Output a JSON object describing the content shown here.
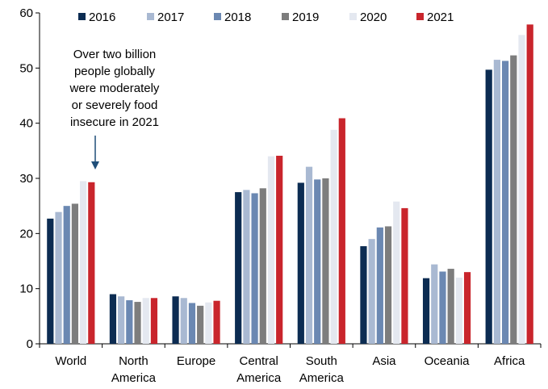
{
  "chart_data": {
    "type": "bar",
    "categories": [
      [
        "World"
      ],
      [
        "North",
        "America"
      ],
      [
        "Europe"
      ],
      [
        "Central",
        "America"
      ],
      [
        "South",
        "America"
      ],
      [
        "Asia"
      ],
      [
        "Oceania"
      ],
      [
        "Africa"
      ]
    ],
    "series": [
      {
        "name": "2016",
        "color": "#0c2c52",
        "values": [
          22.7,
          9.0,
          8.6,
          27.5,
          29.2,
          17.7,
          11.9,
          49.7
        ]
      },
      {
        "name": "2017",
        "color": "#a9b9d2",
        "values": [
          23.9,
          8.6,
          8.3,
          27.9,
          32.1,
          19.0,
          14.4,
          51.5
        ]
      },
      {
        "name": "2018",
        "color": "#6b88b2",
        "values": [
          25.0,
          7.9,
          7.4,
          27.3,
          29.8,
          21.1,
          13.1,
          51.3
        ]
      },
      {
        "name": "2019",
        "color": "#7d7d7d",
        "values": [
          25.4,
          7.6,
          6.9,
          28.2,
          30.0,
          21.3,
          13.6,
          52.3
        ]
      },
      {
        "name": "2020",
        "color": "#e4e8f0",
        "values": [
          29.5,
          8.3,
          7.5,
          34.0,
          38.8,
          25.8,
          12.0,
          56.0
        ]
      },
      {
        "name": "2021",
        "color": "#c9252c",
        "values": [
          29.3,
          8.3,
          7.8,
          34.1,
          40.9,
          24.6,
          13.0,
          57.9
        ]
      }
    ],
    "ylim": [
      0,
      60
    ],
    "yticks": [
      0,
      10,
      20,
      30,
      40,
      50,
      60
    ],
    "legend_position": "top",
    "grid": false,
    "annotation": {
      "lines": [
        "Over two billion",
        "people globally",
        "were moderately",
        "or severely food",
        "insecure in 2021"
      ],
      "arrow_color": "#1f4e79",
      "points_to_category": 0
    }
  }
}
